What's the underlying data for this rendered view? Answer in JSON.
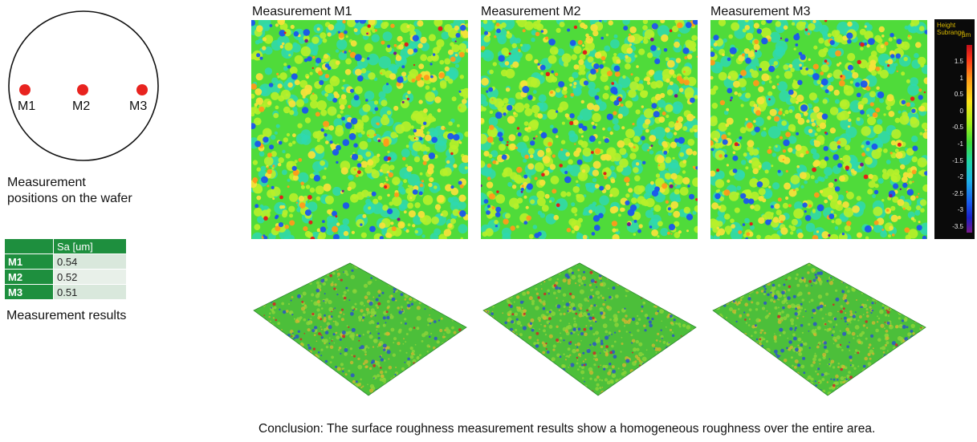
{
  "wafer": {
    "positions": [
      "M1",
      "M2",
      "M3"
    ],
    "caption_line1": "Measurement",
    "caption_line2": "positions on the wafer"
  },
  "results_table": {
    "header": [
      "",
      "Sa [um]"
    ],
    "rows": [
      {
        "id": "M1",
        "value": "0.54"
      },
      {
        "id": "M2",
        "value": "0.52"
      },
      {
        "id": "M3",
        "value": "0.51"
      }
    ],
    "caption": "Measurement results"
  },
  "maps": [
    {
      "title": "Measurement M1"
    },
    {
      "title": "Measurement M2"
    },
    {
      "title": "Measurement M3"
    }
  ],
  "colorbar": {
    "title_line1": "Height",
    "title_line2": "Subrange",
    "unit": "µm",
    "ticks": [
      "1.5",
      "1",
      "0.5",
      "0",
      "-0.5",
      "-1",
      "-1.5",
      "-2",
      "-2.5",
      "-3",
      "-3.5"
    ]
  },
  "colors": {
    "marker": "#e8231f",
    "table_green": "#1e8f3e",
    "map_base": "#4fdb3a"
  },
  "conclusion": "Conclusion: The surface roughness measurement results show a homogeneous roughness over the entire area."
}
